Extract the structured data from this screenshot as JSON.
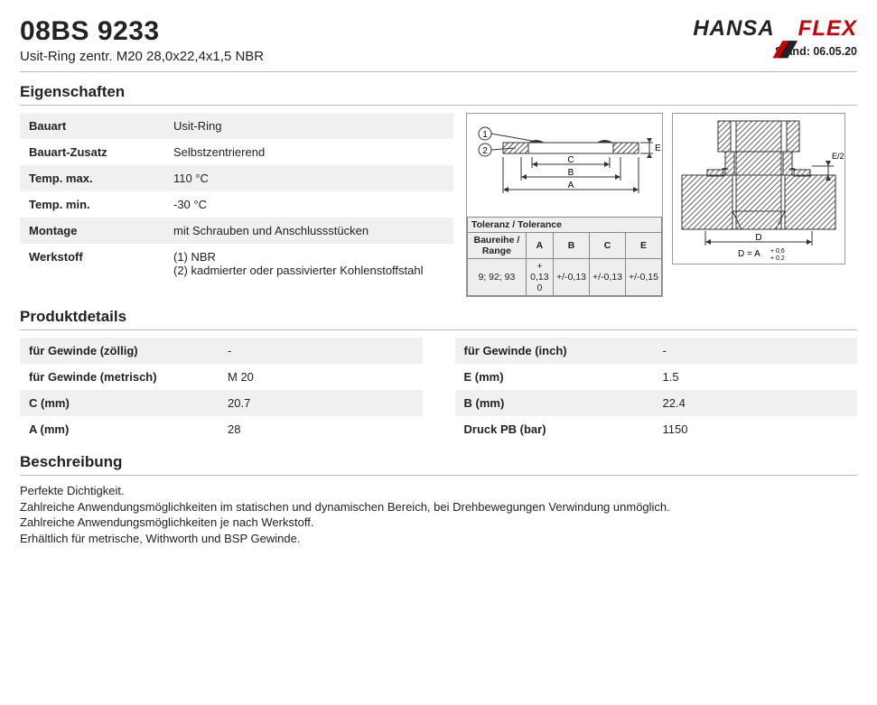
{
  "header": {
    "product_code": "08BS 9233",
    "subtitle": "Usit-Ring zentr. M20 28,0x22,4x1,5 NBR",
    "logo_hansa": "HANSA",
    "logo_flex": "FLEX",
    "stand_label": "Stand: 06.05.20"
  },
  "sections": {
    "eigenschaften": "Eigenschaften",
    "produktdetails": "Produktdetails",
    "beschreibung": "Beschreibung"
  },
  "eigenschaften": [
    {
      "k": "Bauart",
      "v": "Usit-Ring"
    },
    {
      "k": "Bauart-Zusatz",
      "v": "Selbstzentrierend"
    },
    {
      "k": "Temp. max.",
      "v": "110 °C"
    },
    {
      "k": "Temp. min.",
      "v": "-30 °C"
    },
    {
      "k": "Montage",
      "v": "mit Schrauben und Anschlussstücken"
    },
    {
      "k": "Werkstoff",
      "v": "(1) NBR\n(2) kadmierter oder passivierter Kohlenstoffstahl"
    }
  ],
  "diagram1": {
    "label_1": "1",
    "label_2": "2",
    "label_C": "C",
    "label_B": "B",
    "label_A": "A",
    "label_E": "E",
    "tol_title": "Toleranz / Tolerance",
    "tol_range_h": "Baureihe / Range",
    "tol_cols": [
      "A",
      "B",
      "C",
      "E"
    ],
    "tol_range": "9; 92; 93",
    "tol_A": "+ 0,13\n0",
    "tol_B": "+/-0,13",
    "tol_C": "+/-0,13",
    "tol_E": "+/-0,15"
  },
  "diagram2": {
    "label_D": "D",
    "label_DA": "D = A",
    "label_sup": "+ 0,6",
    "label_sub": "+ 0,2",
    "label_E2": "E/2"
  },
  "produktdetails": {
    "left": [
      {
        "k": "für Gewinde (zöllig)",
        "v": "-"
      },
      {
        "k": "für Gewinde (metrisch)",
        "v": "M 20"
      },
      {
        "k": "C (mm)",
        "v": "20.7"
      },
      {
        "k": "A (mm)",
        "v": "28"
      }
    ],
    "right": [
      {
        "k": "für Gewinde (inch)",
        "v": "-"
      },
      {
        "k": "E (mm)",
        "v": "1.5"
      },
      {
        "k": "B (mm)",
        "v": "22.4"
      },
      {
        "k": "Druck PB (bar)",
        "v": "1150"
      }
    ]
  },
  "beschreibung": [
    "Perfekte Dichtigkeit.",
    "Zahlreiche Anwendungsmöglichkeiten im statischen und dynamischen Bereich, bei Drehbewegungen Verwindung unmöglich.",
    "Zahlreiche Anwendungsmöglichkeiten je nach Werkstoff.",
    "Erhältlich für metrische, Withworth und BSP Gewinde."
  ],
  "style": {
    "bg": "#ffffff",
    "alt_row_bg": "#f0f0f0",
    "border": "#bbbbbb",
    "logo_red": "#cc0000",
    "text": "#222222",
    "heading_fontsize": 30,
    "section_fontsize": 17,
    "body_fontsize": 13
  }
}
